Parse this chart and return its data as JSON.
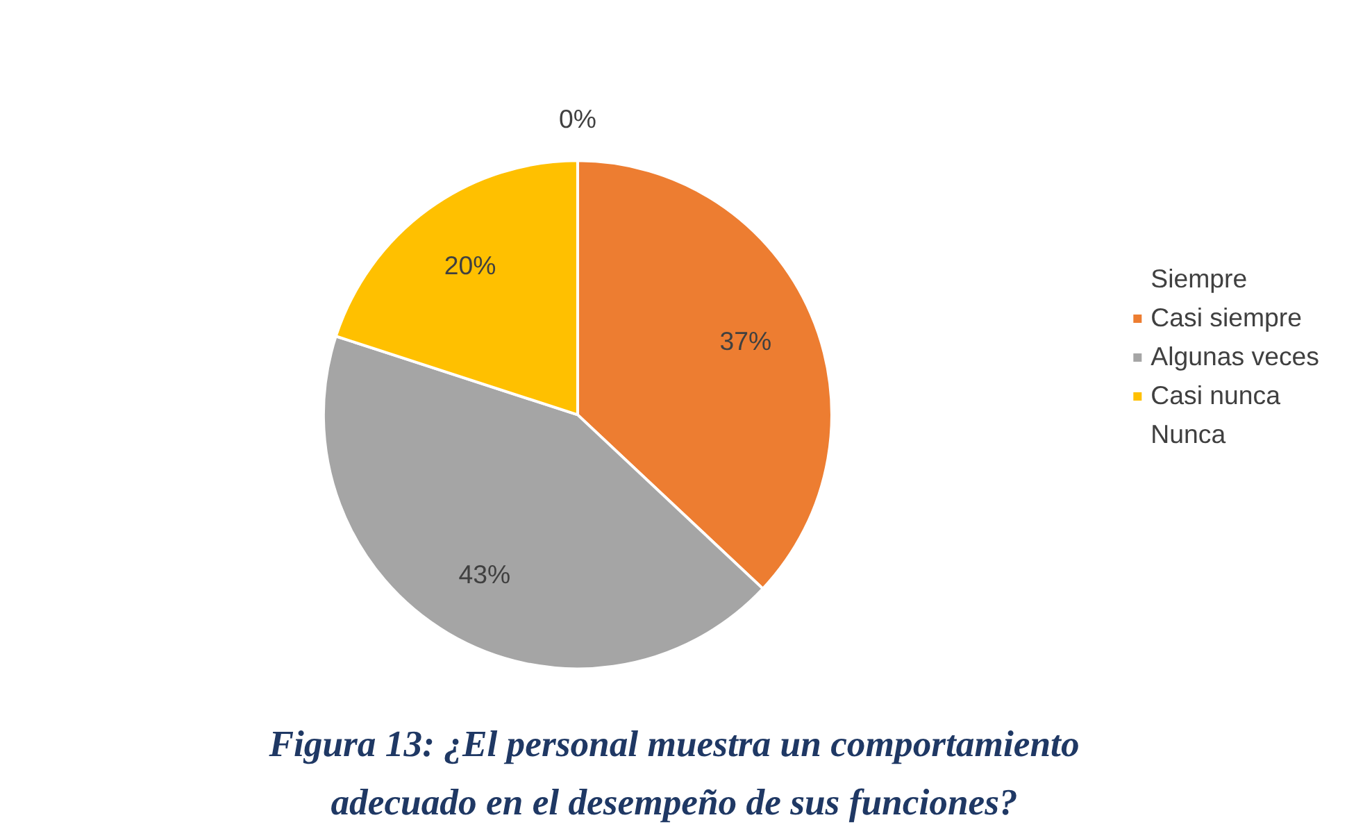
{
  "chart_data": {
    "type": "pie",
    "title": "Figura 13: ¿El personal muestra un comportamiento adecuado en el desempeño de sus funciones?",
    "categories": [
      "Siempre",
      "Casi siempre",
      "Algunas veces",
      "Casi nunca",
      "Nunca"
    ],
    "values": [
      0,
      37,
      43,
      20,
      0
    ],
    "colors": [
      "#5b9bd5",
      "#ed7d31",
      "#a5a5a5",
      "#ffc000",
      "#4472c4"
    ],
    "value_labels": [
      "0%",
      "37%",
      "43%",
      "20%",
      null
    ],
    "legend": "right"
  }
}
